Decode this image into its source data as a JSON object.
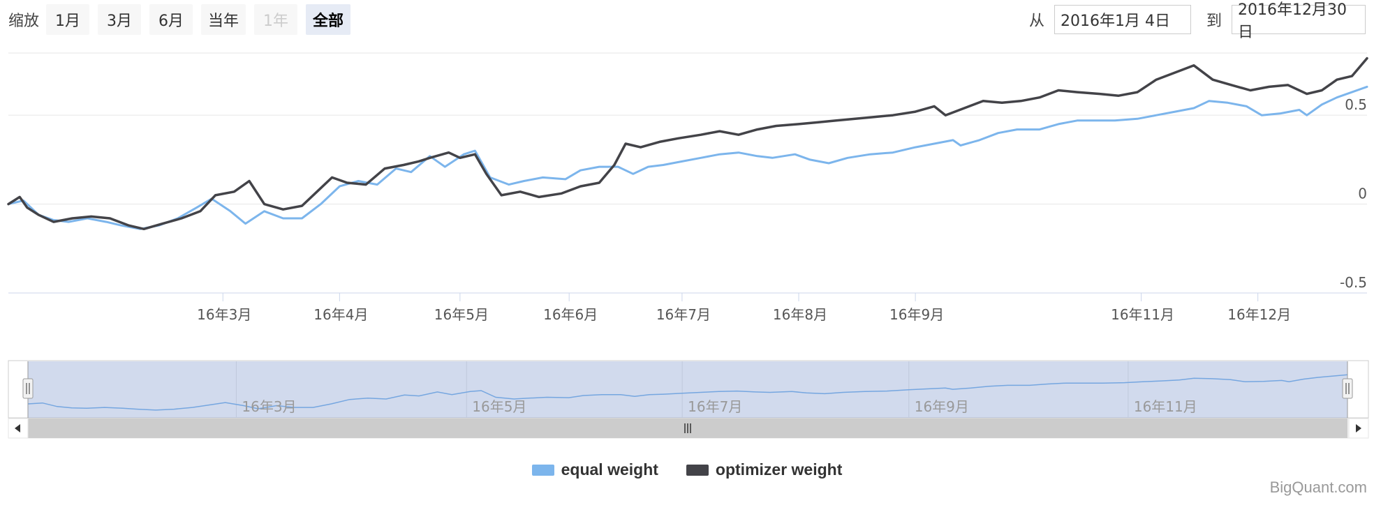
{
  "range_selector": {
    "zoom_label": "缩放",
    "buttons": [
      {
        "label": "1月",
        "state": "normal"
      },
      {
        "label": "3月",
        "state": "normal"
      },
      {
        "label": "6月",
        "state": "normal"
      },
      {
        "label": "当年",
        "state": "normal"
      },
      {
        "label": "1年",
        "state": "disabled"
      },
      {
        "label": "全部",
        "state": "selected"
      }
    ],
    "from_label": "从",
    "from_value": "2016年1月 4日",
    "to_label": "到",
    "to_value": "2016年12月30日"
  },
  "chart_data": {
    "type": "line",
    "title": "",
    "xlabel": "",
    "ylabel": "",
    "x_range": [
      "2016-01-04",
      "2016-12-30"
    ],
    "ylim": [
      -0.5,
      0.85
    ],
    "y_ticks": [
      {
        "value": -0.5,
        "label": "-0.5"
      },
      {
        "value": 0,
        "label": "0"
      },
      {
        "value": 0.5,
        "label": "0.5"
      }
    ],
    "x_ticks": [
      {
        "date": "2016-03-01",
        "label": "16年3月"
      },
      {
        "date": "2016-04-01",
        "label": "16年4月"
      },
      {
        "date": "2016-05-03",
        "label": "16年5月"
      },
      {
        "date": "2016-06-01",
        "label": "16年6月"
      },
      {
        "date": "2016-07-01",
        "label": "16年7月"
      },
      {
        "date": "2016-08-01",
        "label": "16年8月"
      },
      {
        "date": "2016-09-01",
        "label": "16年9月"
      },
      {
        "date": "2016-10-31",
        "label": "16年11月"
      },
      {
        "date": "2016-12-01",
        "label": "16年12月"
      }
    ],
    "grid": true,
    "legend_position": "bottom-center",
    "series": [
      {
        "name": "equal weight",
        "color": "#7cb5ec",
        "points": [
          [
            "2016-01-04",
            0.0
          ],
          [
            "2016-01-08",
            0.02
          ],
          [
            "2016-01-12",
            -0.06
          ],
          [
            "2016-01-16",
            -0.09
          ],
          [
            "2016-01-20",
            -0.1
          ],
          [
            "2016-01-25",
            -0.08
          ],
          [
            "2016-01-30",
            -0.1
          ],
          [
            "2016-02-03",
            -0.12
          ],
          [
            "2016-02-08",
            -0.14
          ],
          [
            "2016-02-13",
            -0.12
          ],
          [
            "2016-02-18",
            -0.08
          ],
          [
            "2016-02-23",
            -0.02
          ],
          [
            "2016-02-27",
            0.03
          ],
          [
            "2016-03-03",
            -0.04
          ],
          [
            "2016-03-07",
            -0.11
          ],
          [
            "2016-03-12",
            -0.04
          ],
          [
            "2016-03-17",
            -0.08
          ],
          [
            "2016-03-22",
            -0.08
          ],
          [
            "2016-03-27",
            0.0
          ],
          [
            "2016-04-01",
            0.1
          ],
          [
            "2016-04-06",
            0.13
          ],
          [
            "2016-04-11",
            0.11
          ],
          [
            "2016-04-16",
            0.2
          ],
          [
            "2016-04-20",
            0.18
          ],
          [
            "2016-04-25",
            0.27
          ],
          [
            "2016-04-29",
            0.21
          ],
          [
            "2016-05-04",
            0.28
          ],
          [
            "2016-05-07",
            0.3
          ],
          [
            "2016-05-11",
            0.15
          ],
          [
            "2016-05-16",
            0.11
          ],
          [
            "2016-05-20",
            0.13
          ],
          [
            "2016-05-25",
            0.15
          ],
          [
            "2016-05-31",
            0.14
          ],
          [
            "2016-06-04",
            0.19
          ],
          [
            "2016-06-09",
            0.21
          ],
          [
            "2016-06-14",
            0.21
          ],
          [
            "2016-06-18",
            0.17
          ],
          [
            "2016-06-22",
            0.21
          ],
          [
            "2016-06-26",
            0.22
          ],
          [
            "2016-07-01",
            0.24
          ],
          [
            "2016-07-06",
            0.26
          ],
          [
            "2016-07-11",
            0.28
          ],
          [
            "2016-07-16",
            0.29
          ],
          [
            "2016-07-21",
            0.27
          ],
          [
            "2016-07-25",
            0.26
          ],
          [
            "2016-07-31",
            0.28
          ],
          [
            "2016-08-04",
            0.25
          ],
          [
            "2016-08-09",
            0.23
          ],
          [
            "2016-08-14",
            0.26
          ],
          [
            "2016-08-20",
            0.28
          ],
          [
            "2016-08-26",
            0.29
          ],
          [
            "2016-09-01",
            0.32
          ],
          [
            "2016-09-06",
            0.34
          ],
          [
            "2016-09-11",
            0.36
          ],
          [
            "2016-09-13",
            0.33
          ],
          [
            "2016-09-18",
            0.36
          ],
          [
            "2016-09-23",
            0.4
          ],
          [
            "2016-09-28",
            0.42
          ],
          [
            "2016-10-04",
            0.42
          ],
          [
            "2016-10-09",
            0.45
          ],
          [
            "2016-10-14",
            0.47
          ],
          [
            "2016-10-19",
            0.47
          ],
          [
            "2016-10-24",
            0.47
          ],
          [
            "2016-10-30",
            0.48
          ],
          [
            "2016-11-04",
            0.5
          ],
          [
            "2016-11-09",
            0.52
          ],
          [
            "2016-11-14",
            0.54
          ],
          [
            "2016-11-18",
            0.58
          ],
          [
            "2016-11-23",
            0.57
          ],
          [
            "2016-11-28",
            0.55
          ],
          [
            "2016-12-02",
            0.5
          ],
          [
            "2016-12-07",
            0.51
          ],
          [
            "2016-12-12",
            0.53
          ],
          [
            "2016-12-14",
            0.5
          ],
          [
            "2016-12-18",
            0.56
          ],
          [
            "2016-12-22",
            0.6
          ],
          [
            "2016-12-26",
            0.63
          ],
          [
            "2016-12-30",
            0.66
          ]
        ]
      },
      {
        "name": "optimizer weight",
        "color": "#434348",
        "points": [
          [
            "2016-01-04",
            0.0
          ],
          [
            "2016-01-07",
            0.04
          ],
          [
            "2016-01-09",
            -0.02
          ],
          [
            "2016-01-12",
            -0.06
          ],
          [
            "2016-01-16",
            -0.1
          ],
          [
            "2016-01-21",
            -0.08
          ],
          [
            "2016-01-26",
            -0.07
          ],
          [
            "2016-01-31",
            -0.08
          ],
          [
            "2016-02-05",
            -0.12
          ],
          [
            "2016-02-09",
            -0.14
          ],
          [
            "2016-02-14",
            -0.11
          ],
          [
            "2016-02-19",
            -0.08
          ],
          [
            "2016-02-24",
            -0.04
          ],
          [
            "2016-02-28",
            0.05
          ],
          [
            "2016-03-04",
            0.07
          ],
          [
            "2016-03-08",
            0.13
          ],
          [
            "2016-03-12",
            0.0
          ],
          [
            "2016-03-17",
            -0.03
          ],
          [
            "2016-03-22",
            -0.01
          ],
          [
            "2016-03-26",
            0.07
          ],
          [
            "2016-03-30",
            0.15
          ],
          [
            "2016-04-03",
            0.12
          ],
          [
            "2016-04-08",
            0.11
          ],
          [
            "2016-04-13",
            0.2
          ],
          [
            "2016-04-18",
            0.22
          ],
          [
            "2016-04-22",
            0.24
          ],
          [
            "2016-04-25",
            0.26
          ],
          [
            "2016-04-30",
            0.29
          ],
          [
            "2016-05-03",
            0.26
          ],
          [
            "2016-05-07",
            0.28
          ],
          [
            "2016-05-10",
            0.17
          ],
          [
            "2016-05-14",
            0.05
          ],
          [
            "2016-05-19",
            0.07
          ],
          [
            "2016-05-24",
            0.04
          ],
          [
            "2016-05-30",
            0.06
          ],
          [
            "2016-06-04",
            0.1
          ],
          [
            "2016-06-09",
            0.12
          ],
          [
            "2016-06-13",
            0.22
          ],
          [
            "2016-06-16",
            0.34
          ],
          [
            "2016-06-20",
            0.32
          ],
          [
            "2016-06-25",
            0.35
          ],
          [
            "2016-06-30",
            0.37
          ],
          [
            "2016-07-06",
            0.39
          ],
          [
            "2016-07-11",
            0.41
          ],
          [
            "2016-07-16",
            0.39
          ],
          [
            "2016-07-21",
            0.42
          ],
          [
            "2016-07-26",
            0.44
          ],
          [
            "2016-08-01",
            0.45
          ],
          [
            "2016-08-06",
            0.46
          ],
          [
            "2016-08-11",
            0.47
          ],
          [
            "2016-08-16",
            0.48
          ],
          [
            "2016-08-21",
            0.49
          ],
          [
            "2016-08-26",
            0.5
          ],
          [
            "2016-09-01",
            0.52
          ],
          [
            "2016-09-06",
            0.55
          ],
          [
            "2016-09-09",
            0.5
          ],
          [
            "2016-09-14",
            0.54
          ],
          [
            "2016-09-19",
            0.58
          ],
          [
            "2016-09-24",
            0.57
          ],
          [
            "2016-09-29",
            0.58
          ],
          [
            "2016-10-04",
            0.6
          ],
          [
            "2016-10-09",
            0.64
          ],
          [
            "2016-10-14",
            0.63
          ],
          [
            "2016-10-20",
            0.62
          ],
          [
            "2016-10-25",
            0.61
          ],
          [
            "2016-10-30",
            0.63
          ],
          [
            "2016-11-04",
            0.7
          ],
          [
            "2016-11-09",
            0.74
          ],
          [
            "2016-11-14",
            0.78
          ],
          [
            "2016-11-19",
            0.7
          ],
          [
            "2016-11-24",
            0.67
          ],
          [
            "2016-11-29",
            0.64
          ],
          [
            "2016-12-04",
            0.66
          ],
          [
            "2016-12-09",
            0.67
          ],
          [
            "2016-12-14",
            0.62
          ],
          [
            "2016-12-18",
            0.64
          ],
          [
            "2016-12-22",
            0.7
          ],
          [
            "2016-12-26",
            0.72
          ],
          [
            "2016-12-30",
            0.82
          ]
        ]
      }
    ]
  },
  "navigator": {
    "x_ticks": [
      {
        "date": "2016-03-01",
        "label": "16年3月"
      },
      {
        "date": "2016-05-03",
        "label": "16年5月"
      },
      {
        "date": "2016-07-01",
        "label": "16年7月"
      },
      {
        "date": "2016-09-01",
        "label": "16年9月"
      },
      {
        "date": "2016-10-31",
        "label": "16年11月"
      }
    ]
  },
  "legend": [
    {
      "label": "equal weight",
      "color": "#7cb5ec"
    },
    {
      "label": "optimizer weight",
      "color": "#434348"
    }
  ],
  "credits": "BigQuant.com"
}
